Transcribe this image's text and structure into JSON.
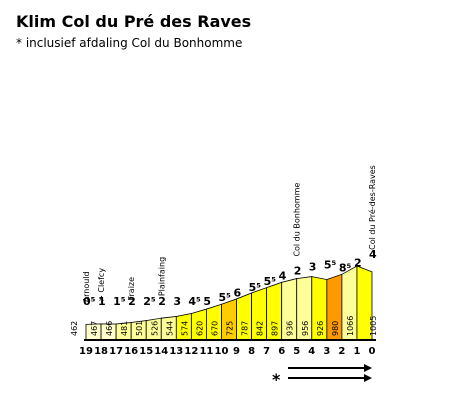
{
  "header": {
    "title": "Klim Col du Pré des Raves",
    "subtitle": "* inclusief afdaling Col du Bonhomme"
  },
  "chart_data": {
    "type": "bar",
    "title": "Klim Col du Pré des Raves",
    "subtitle": "* inclusief afdaling Col du Bonhomme",
    "categories": [
      "19",
      "18",
      "17",
      "16",
      "15",
      "14",
      "13",
      "12",
      "11",
      "10",
      "9",
      "8",
      "7",
      "6",
      "5",
      "4",
      "3",
      "2",
      "1",
      "0"
    ],
    "altitudes": [
      462,
      467,
      466,
      481,
      501,
      526,
      544,
      574,
      620,
      670,
      725,
      787,
      842,
      897,
      936,
      956,
      926,
      980,
      1066,
      1005
    ],
    "gradients": [
      "0⁵",
      "1",
      "1⁵",
      "2",
      "2⁵",
      "2",
      "3",
      "4⁵",
      "5",
      "5⁵",
      "6",
      "5⁵",
      "5⁵",
      "4",
      "2",
      "3",
      "5⁵",
      "8⁵",
      "2",
      "4"
    ],
    "km_labels": [
      "19",
      "18",
      "17",
      "16",
      "15",
      "14",
      "13",
      "12",
      "11",
      "10",
      "9",
      "8",
      "7",
      "6",
      "5",
      "4",
      "3",
      "2",
      "1",
      "0"
    ],
    "place_labels": [
      {
        "km": "19",
        "name": "Arnould"
      },
      {
        "km": "18",
        "name": "> Clefcy"
      },
      {
        "km": "16",
        "name": "Fraize"
      },
      {
        "km": "14",
        "name": "Plainfaing"
      },
      {
        "km": "5",
        "name": "Col du Bonhomme"
      },
      {
        "km": "0",
        "name": "Col du Pré-des-Raves"
      }
    ],
    "colors": {
      "pale": "#ffffcc",
      "light": "#ffff99",
      "yellow": "#ffff00",
      "gold": "#ffcc00",
      "orange": "#ff9900"
    },
    "legend": {
      "marker": "*",
      "arrow_label": "→"
    }
  }
}
